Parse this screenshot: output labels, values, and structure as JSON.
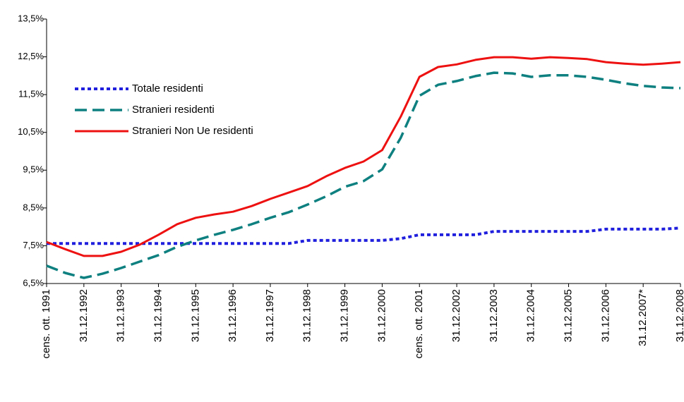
{
  "chart_data": {
    "type": "line",
    "categories": [
      "cens. ott. 1991",
      null,
      "31.12.1992",
      null,
      "31.12.1993",
      null,
      "31.12.1994",
      null,
      "31.12.1995",
      null,
      "31.12.1996",
      null,
      "31.12.1997",
      null,
      "31.12.1998",
      null,
      "31.12.1999",
      null,
      "31.12.2000",
      null,
      "cens. ott. 2001",
      null,
      "31.12.2002",
      null,
      "31.12.2003",
      null,
      "31.12.2004",
      null,
      "31.12.2005",
      null,
      "31.12.2006",
      null,
      "31.12.2007*",
      null,
      "31.12.2008"
    ],
    "series": [
      {
        "name": "Totale residenti",
        "color": "#1f1fdd",
        "style": "dotted",
        "values": [
          7.56,
          7.56,
          7.56,
          7.56,
          7.56,
          7.56,
          7.56,
          7.56,
          7.56,
          7.56,
          7.56,
          7.56,
          7.56,
          7.56,
          7.64,
          7.64,
          7.64,
          7.64,
          7.64,
          7.69,
          7.79,
          7.79,
          7.79,
          7.79,
          7.88,
          7.88,
          7.88,
          7.88,
          7.88,
          7.88,
          7.94,
          7.94,
          7.94,
          7.94,
          7.97
        ]
      },
      {
        "name": "Stranieri residenti",
        "color": "#0f8080",
        "style": "dashed",
        "values": [
          6.97,
          6.78,
          6.65,
          6.76,
          6.91,
          7.08,
          7.25,
          7.47,
          7.64,
          7.79,
          7.92,
          8.07,
          8.24,
          8.39,
          8.59,
          8.81,
          9.06,
          9.21,
          9.52,
          10.36,
          11.47,
          11.76,
          11.86,
          11.99,
          12.08,
          12.06,
          11.97,
          12.01,
          12.01,
          11.97,
          11.89,
          11.8,
          11.73,
          11.69,
          11.67
        ]
      },
      {
        "name": "Stranieri Non Ue residenti",
        "color": "#ee1111",
        "style": "solid",
        "values": [
          7.6,
          7.41,
          7.23,
          7.23,
          7.34,
          7.53,
          7.79,
          8.07,
          8.24,
          8.33,
          8.4,
          8.55,
          8.74,
          8.91,
          9.08,
          9.34,
          9.56,
          9.73,
          10.03,
          10.92,
          11.97,
          12.23,
          12.3,
          12.42,
          12.49,
          12.49,
          12.45,
          12.49,
          12.47,
          12.44,
          12.36,
          12.32,
          12.29,
          12.32,
          12.36
        ]
      }
    ],
    "ylim": [
      6.5,
      13.5
    ],
    "yticks": [
      {
        "value": 6.5,
        "label": "6,5%"
      },
      {
        "value": 7.5,
        "label": "7,5%"
      },
      {
        "value": 8.5,
        "label": "8,5%"
      },
      {
        "value": 9.5,
        "label": "9,5%"
      },
      {
        "value": 10.5,
        "label": "10,5%"
      },
      {
        "value": 11.5,
        "label": "11,5%"
      },
      {
        "value": 12.5,
        "label": "12,5%"
      },
      {
        "value": 13.5,
        "label": "13,5%"
      }
    ],
    "grid": false,
    "legend": "upper left"
  }
}
